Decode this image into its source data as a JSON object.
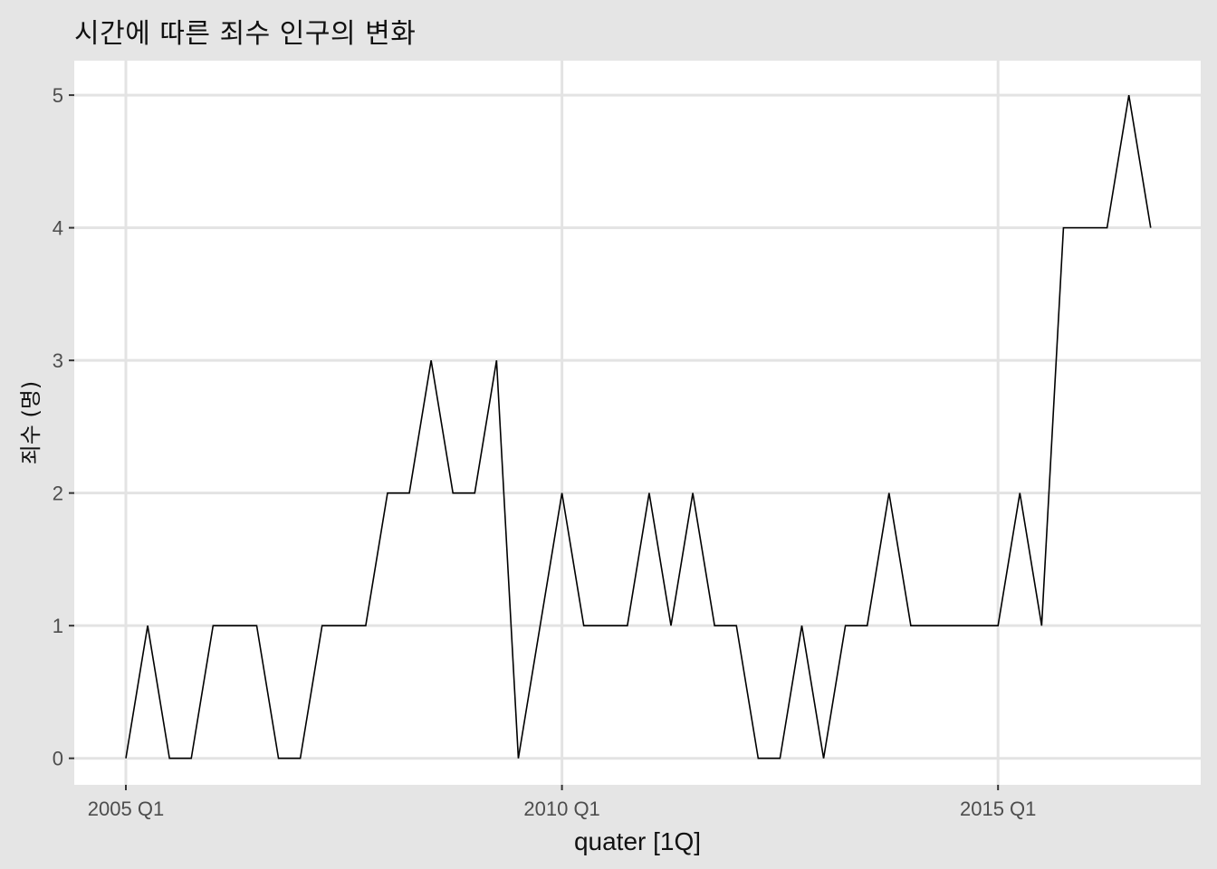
{
  "chart_data": {
    "type": "line",
    "title": "시간에 따른 죄수 인구의 변화",
    "xlabel": "quater [1Q]",
    "ylabel": "죄수 (명)",
    "x_tick_labels": [
      "2005 Q1",
      "2010 Q1",
      "2015 Q1"
    ],
    "x_tick_positions": [
      0,
      20,
      40
    ],
    "y_ticks": [
      0,
      1,
      2,
      3,
      4,
      5
    ],
    "ylim": [
      -0.2,
      5.26
    ],
    "grid": true,
    "legend": "none",
    "x": [
      "2005 Q1",
      "2005 Q2",
      "2005 Q3",
      "2005 Q4",
      "2006 Q1",
      "2006 Q2",
      "2006 Q3",
      "2006 Q4",
      "2007 Q1",
      "2007 Q2",
      "2007 Q3",
      "2007 Q4",
      "2008 Q1",
      "2008 Q2",
      "2008 Q3",
      "2008 Q4",
      "2009 Q1",
      "2009 Q2",
      "2009 Q3",
      "2009 Q4",
      "2010 Q1",
      "2010 Q2",
      "2010 Q3",
      "2010 Q4",
      "2011 Q1",
      "2011 Q2",
      "2011 Q3",
      "2011 Q4",
      "2012 Q1",
      "2012 Q2",
      "2012 Q3",
      "2012 Q4",
      "2013 Q1",
      "2013 Q2",
      "2013 Q3",
      "2013 Q4",
      "2014 Q1",
      "2014 Q2",
      "2014 Q3",
      "2014 Q4",
      "2015 Q1",
      "2015 Q2",
      "2015 Q3",
      "2015 Q4",
      "2016 Q1",
      "2016 Q2",
      "2016 Q3",
      "2016 Q4"
    ],
    "values": [
      0,
      1,
      0,
      0,
      1,
      1,
      1,
      0,
      0,
      1,
      1,
      1,
      2,
      2,
      3,
      2,
      2,
      3,
      0,
      1,
      2,
      1,
      1,
      1,
      2,
      1,
      2,
      1,
      1,
      0,
      0,
      1,
      0,
      1,
      1,
      2,
      1,
      1,
      1,
      1,
      1,
      2,
      1,
      4,
      4,
      4,
      5,
      4
    ],
    "colors": {
      "panel": "#ffffff",
      "background": "#e5e5e5",
      "grid": "#e3e3e3",
      "line": "#000000"
    }
  }
}
